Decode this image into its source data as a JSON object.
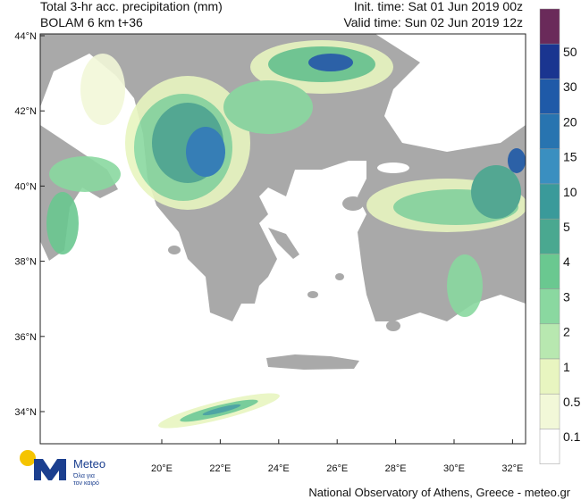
{
  "header": {
    "title": "Total 3-hr acc. precipitation (mm)",
    "model": "BOLAM 6 km t+36",
    "init_time": "Init. time: Sat 01 Jun 2019 00z",
    "valid_time": "Valid time: Sun 02 Jun 2019 12z"
  },
  "map": {
    "lat_labels": [
      "44°N",
      "42°N",
      "40°N",
      "38°N",
      "36°N",
      "34°N"
    ],
    "lon_labels": [
      "20°E",
      "22°E",
      "24°E",
      "26°E",
      "28°E",
      "30°E",
      "32°E"
    ]
  },
  "legend": {
    "levels": [
      "50",
      "30",
      "20",
      "15",
      "10",
      "5",
      "4",
      "3",
      "2",
      "1",
      "0.5",
      "0.1"
    ]
  },
  "logo": {
    "name": "Meteo",
    "tagline_1": "Όλα για",
    "tagline_2": "τον καιρό"
  },
  "footer": "National Observatory of Athens, Greece - meteo.gr"
}
